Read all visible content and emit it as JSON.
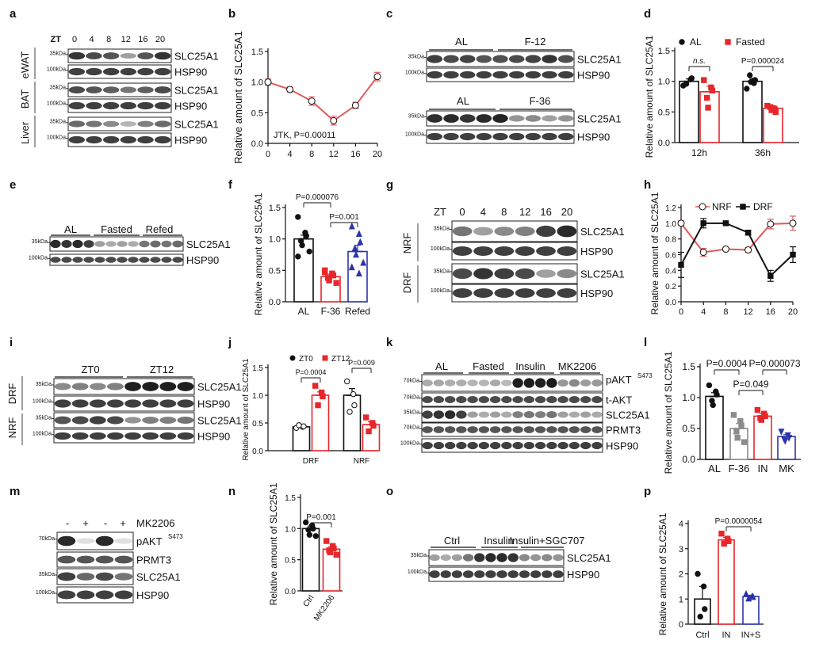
{
  "colors": {
    "red": "#e8262b",
    "blue": "#2b35a8",
    "gray": "#8c8c8c",
    "redline": "#e05a5a",
    "black": "#111111"
  },
  "common": {
    "ylab": "Relative amount of SLC25A1",
    "slc": "SLC25A1",
    "hsp": "HSP90",
    "pakt": "pAKT",
    "pakt_sup": "S473",
    "takt": "t-AKT",
    "prmt3": "PRMT3",
    "k35": "35kDa",
    "k70": "70kDa",
    "k100": "100kDa",
    "zt": "ZT",
    "ns": "n.s."
  },
  "panels": {
    "a": {
      "letter": "a",
      "zt": [
        "0",
        "4",
        "8",
        "12",
        "16",
        "20"
      ],
      "tissues": [
        "eWAT",
        "BAT",
        "Liver"
      ]
    },
    "b": {
      "letter": "b",
      "note": "JTK, P=0.00011"
    },
    "c": {
      "letter": "c",
      "g1": [
        "AL",
        "F-12"
      ],
      "g2": [
        "AL",
        "F-36"
      ]
    },
    "d": {
      "letter": "d",
      "leg": [
        "AL",
        "Fasted"
      ],
      "pvals": [
        "n.s.",
        "P=0.000024"
      ]
    },
    "e": {
      "letter": "e",
      "groups": [
        "AL",
        "Fasted",
        "Refed"
      ]
    },
    "f": {
      "letter": "f",
      "pvals": [
        "P=0.000076",
        "P=0.001"
      ]
    },
    "g": {
      "letter": "g",
      "zt": [
        "0",
        "4",
        "8",
        "12",
        "16",
        "20"
      ],
      "rows": [
        "NRF",
        "DRF"
      ]
    },
    "h": {
      "letter": "h",
      "leg": [
        "NRF",
        "DRF"
      ]
    },
    "i": {
      "letter": "i",
      "groups": [
        "ZT0",
        "ZT12"
      ],
      "rows": [
        "DRF",
        "NRF"
      ]
    },
    "j": {
      "letter": "j",
      "leg": [
        "ZT0",
        "ZT12"
      ],
      "pvals": [
        "P=0.0004",
        "P=0.009"
      ]
    },
    "k": {
      "letter": "k",
      "groups": [
        "AL",
        "Fasted",
        "Insulin",
        "MK2206"
      ]
    },
    "l": {
      "letter": "l",
      "pvals": [
        "P=0.0004",
        "P=0.049",
        "P=0.000073"
      ]
    },
    "m": {
      "letter": "m",
      "signs": [
        "-",
        "+",
        "-",
        "+"
      ],
      "label": "MK2206"
    },
    "n": {
      "letter": "n",
      "pvals": [
        "P=0.001"
      ]
    },
    "o": {
      "letter": "o",
      "groups": [
        "Ctrl",
        "Insulin",
        "Insulin+SGC707"
      ]
    },
    "p": {
      "letter": "p",
      "pvals": [
        "P=0.0000054"
      ]
    }
  },
  "chart_data": [
    {
      "id": "b",
      "type": "line",
      "title": "",
      "xlabel": "",
      "ylabel": "Relative amount of SLC25A1",
      "x": [
        0,
        4,
        8,
        12,
        16,
        20
      ],
      "values": [
        1.0,
        0.88,
        0.69,
        0.37,
        0.62,
        1.09
      ],
      "errors": [
        0.05,
        0.04,
        0.07,
        0.07,
        0.05,
        0.07
      ],
      "xlim": [
        0,
        20
      ],
      "ylim": [
        0,
        1.5
      ],
      "yticks": [
        "0.0",
        "0.5",
        "1.0",
        "1.5"
      ]
    },
    {
      "id": "d",
      "type": "bar",
      "categories": [
        "12h",
        "36h"
      ],
      "series": [
        {
          "name": "AL",
          "values": [
            1.0,
            1.0
          ],
          "errors": [
            0.04,
            0.05
          ],
          "points": [
            [
              0.93,
              1.03,
              1.05,
              0.96
            ],
            [
              0.88,
              0.97,
              1.02,
              1.1,
              0.99
            ]
          ]
        },
        {
          "name": "Fasted",
          "values": [
            0.83,
            0.56
          ],
          "errors": [
            0.09,
            0.04
          ],
          "points": [
            [
              1.02,
              0.9,
              0.85,
              0.73,
              0.57
            ],
            [
              0.6,
              0.55,
              0.5,
              0.58,
              0.53
            ]
          ]
        }
      ],
      "ylim": [
        0,
        1.5
      ],
      "yticks": [
        "0.0",
        "0.5",
        "1.0",
        "1.5"
      ]
    },
    {
      "id": "f",
      "type": "bar",
      "categories": [
        "AL",
        "F-36",
        "Refed"
      ],
      "values": [
        1.0,
        0.4,
        0.8
      ],
      "errors": [
        0.06,
        0.04,
        0.1
      ],
      "points": [
        [
          1.35,
          1.1,
          1.05,
          0.97,
          0.9,
          0.8,
          0.72
        ],
        [
          0.5,
          0.45,
          0.42,
          0.38,
          0.34,
          0.3,
          0.47
        ],
        [
          1.2,
          1.08,
          0.95,
          0.85,
          0.75,
          0.62,
          0.55,
          0.45
        ]
      ],
      "ylim": [
        0,
        1.5
      ],
      "yticks": [
        "0.0",
        "0.5",
        "1.0",
        "1.5"
      ]
    },
    {
      "id": "h",
      "type": "line",
      "x": [
        0,
        4,
        8,
        12,
        16,
        20
      ],
      "series": [
        {
          "name": "NRF",
          "values": [
            1.0,
            0.63,
            0.67,
            0.66,
            0.99,
            1.0
          ],
          "errors": [
            0.03,
            0.05,
            0.02,
            0.03,
            0.06,
            0.09
          ]
        },
        {
          "name": "DRF",
          "values": [
            0.47,
            1.0,
            1.0,
            0.88,
            0.33,
            0.6
          ],
          "errors": [
            0.16,
            0.06,
            0.01,
            0.03,
            0.07,
            0.1
          ]
        }
      ],
      "ylim": [
        0,
        1.2
      ],
      "yticks": [
        "0.0",
        "0.2",
        "0.4",
        "0.6",
        "0.8",
        "1.0",
        "1.2"
      ]
    },
    {
      "id": "j",
      "type": "bar",
      "categories": [
        "DRF",
        "NRF"
      ],
      "series": [
        {
          "name": "ZT0",
          "values": [
            0.43,
            1.0
          ],
          "errors": [
            0.01,
            0.12
          ],
          "points": [
            [
              0.41,
              0.43,
              0.44,
              0.46
            ],
            [
              1.25,
              1.02,
              0.82,
              0.7
            ]
          ]
        },
        {
          "name": "ZT12",
          "values": [
            1.0,
            0.47
          ],
          "errors": [
            0.06,
            0.05
          ],
          "points": [
            [
              1.17,
              1.05,
              0.98,
              0.82
            ],
            [
              0.6,
              0.5,
              0.45,
              0.35
            ]
          ]
        }
      ],
      "ylim": [
        0,
        1.5
      ],
      "yticks": [
        "0.0",
        "0.5",
        "1.0",
        "1.5"
      ]
    },
    {
      "id": "l",
      "type": "bar",
      "categories": [
        "AL",
        "F-36",
        "IN",
        "MK"
      ],
      "values": [
        1.02,
        0.5,
        0.7,
        0.37
      ],
      "errors": [
        0.06,
        0.08,
        0.04,
        0.03
      ],
      "points": [
        [
          1.2,
          1.1,
          1.05,
          0.95,
          0.88
        ],
        [
          0.72,
          0.62,
          0.55,
          0.45,
          0.35,
          0.28
        ],
        [
          0.8,
          0.74,
          0.7,
          0.67,
          0.64
        ],
        [
          0.45,
          0.39,
          0.35,
          0.33,
          0.3
        ]
      ],
      "ylim": [
        0,
        1.5
      ],
      "yticks": [
        "0.0",
        "0.5",
        "1.0",
        "1.5"
      ]
    },
    {
      "id": "n",
      "type": "bar",
      "categories": [
        "Ctrl",
        "MK2206"
      ],
      "values": [
        1.0,
        0.67
      ],
      "errors": [
        0.04,
        0.04
      ],
      "points": [
        [
          1.1,
          1.05,
          1.0,
          0.98,
          0.9,
          0.88
        ],
        [
          0.8,
          0.72,
          0.68,
          0.65,
          0.62,
          0.58
        ]
      ],
      "ylim": [
        0,
        1.5
      ],
      "yticks": [
        "0.0",
        "0.5",
        "1.0",
        "1.5"
      ]
    },
    {
      "id": "p",
      "type": "bar",
      "categories": [
        "Ctrl",
        "IN",
        "IN+S"
      ],
      "values": [
        1.0,
        3.35,
        1.1
      ],
      "errors": [
        0.5,
        0.1,
        0.05
      ],
      "points": [
        [
          2.0,
          1.5,
          0.6,
          0.3
        ],
        [
          3.6,
          3.4,
          3.3,
          3.2
        ],
        [
          1.2,
          1.1,
          1.08,
          1.02
        ]
      ],
      "ylim": [
        0,
        4
      ],
      "yticks": [
        "0",
        "1",
        "2",
        "3",
        "4"
      ]
    }
  ]
}
